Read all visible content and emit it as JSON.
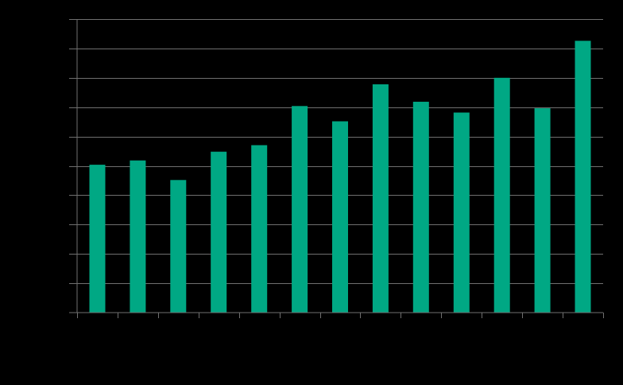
{
  "chart_data": {
    "type": "bar",
    "title": "",
    "xlabel": "",
    "ylabel": "",
    "categories": [
      "",
      "",
      "",
      "",
      "",
      "",
      "",
      "",
      "",
      "",
      "",
      "",
      ""
    ],
    "values": [
      6.8,
      7.0,
      6.1,
      7.4,
      7.7,
      9.5,
      8.8,
      10.5,
      9.7,
      9.2,
      10.8,
      9.4,
      12.5
    ],
    "ylim": [
      0,
      13.5
    ],
    "ytick_step": 1.35,
    "grid": true,
    "colors": {
      "bar": "#00a884",
      "background": "#000000",
      "grid": "#6f6f6f"
    }
  }
}
